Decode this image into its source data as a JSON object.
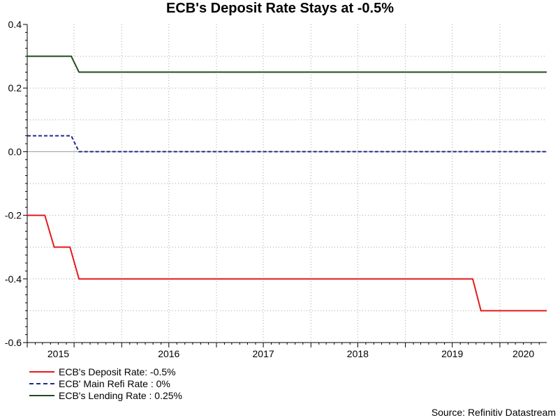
{
  "chart_data": {
    "type": "line",
    "title": "ECB's Deposit Rate Stays at -0.5%",
    "xlabel": "",
    "ylabel": "",
    "ylim": [
      -0.6,
      0.4
    ],
    "xlim": [
      "2015-01-01",
      "2020-06-30"
    ],
    "y_ticks": [
      "0.4",
      "0.2",
      "0.0",
      "-0.2",
      "-0.4",
      "-0.6"
    ],
    "x_tick_labels": [
      "2015",
      "2016",
      "2017",
      "2018",
      "2019",
      "2020"
    ],
    "grid": true,
    "legend_position": "bottom-left",
    "series": [
      {
        "name": "ECB's Deposit Rate: -0.5%",
        "color": "#e41a1c",
        "style": "solid",
        "points": [
          [
            "2015-01-01",
            -0.2
          ],
          [
            "2015-03-10",
            -0.2
          ],
          [
            "2015-04-15",
            -0.3
          ],
          [
            "2015-06-15",
            -0.3
          ],
          [
            "2015-07-20",
            -0.4
          ],
          [
            "2019-09-18",
            -0.4
          ],
          [
            "2019-10-20",
            -0.5
          ],
          [
            "2020-06-30",
            -0.5
          ]
        ]
      },
      {
        "name": "ECB' Main Refi Rate : 0%",
        "color": "#1f2a8c",
        "style": "dashed",
        "points": [
          [
            "2015-01-01",
            0.05
          ],
          [
            "2015-06-20",
            0.05
          ],
          [
            "2015-07-20",
            0.0
          ],
          [
            "2020-06-30",
            0.0
          ]
        ]
      },
      {
        "name": "ECB's Lending Rate : 0.25%",
        "color": "#1e4d1e",
        "style": "solid",
        "points": [
          [
            "2015-01-01",
            0.3
          ],
          [
            "2015-06-20",
            0.3
          ],
          [
            "2015-07-20",
            0.25
          ],
          [
            "2020-06-30",
            0.25
          ]
        ]
      }
    ]
  },
  "source": "Source: Refinitiv Datastream"
}
